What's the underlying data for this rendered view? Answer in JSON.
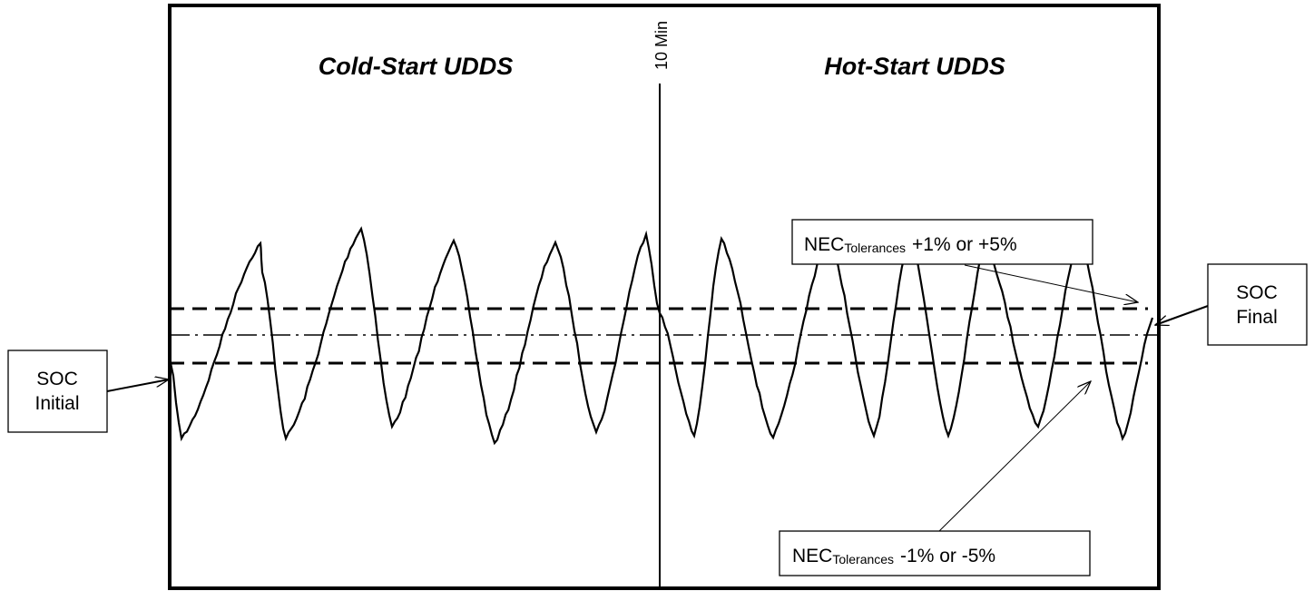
{
  "title_left": "Cold-Start UDDS",
  "title_right": "Hot-Start UDDS",
  "marker": "10 Min",
  "upper_tolerance": {
    "prefix": "NEC",
    "subscript": "Tolerances",
    "text": "+1% or +5%"
  },
  "lower_tolerance": {
    "prefix": "NEC",
    "subscript": "Tolerances",
    "text": "-1% or -5%"
  },
  "soc_initial": [
    "SOC",
    "Initial"
  ],
  "soc_final": [
    "SOC",
    "Final"
  ]
}
